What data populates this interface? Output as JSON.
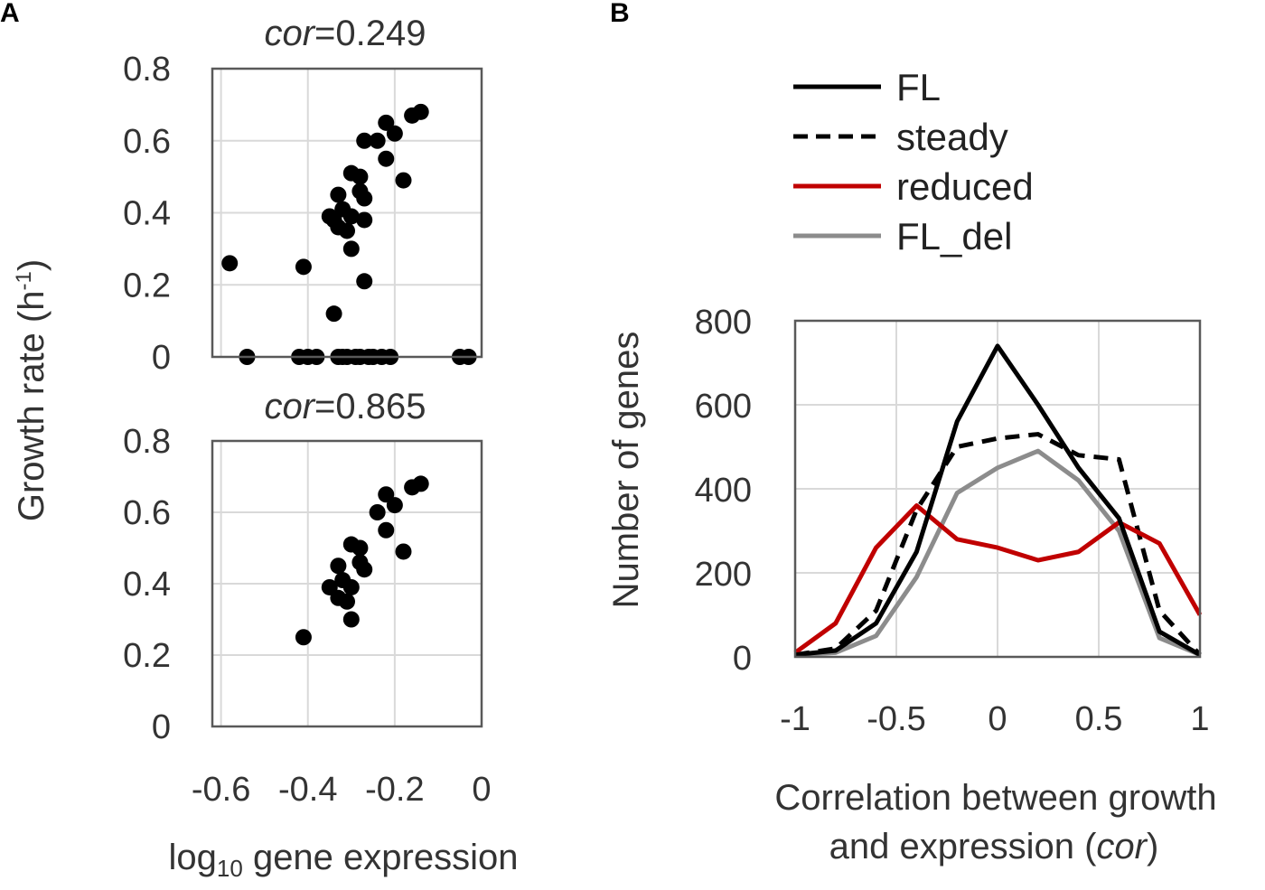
{
  "panels": {
    "a_letter": "A",
    "b_letter": "B"
  },
  "chart_data": [
    {
      "id": "a_top",
      "type": "scatter",
      "title_prefix": "cor",
      "title_value": "=0.249",
      "ylabel": "Growth rate (h",
      "ylabel_sup": "-1",
      "ylabel_close": ")",
      "xlim": [
        -0.62,
        0.0
      ],
      "ylim": [
        0,
        0.8
      ],
      "yticks": [
        "0",
        "0.2",
        "0.4",
        "0.6",
        "0.8"
      ],
      "grid": true,
      "points": [
        [
          -0.58,
          0.26
        ],
        [
          -0.54,
          0.0
        ],
        [
          -0.42,
          0.0
        ],
        [
          -0.41,
          0.25
        ],
        [
          -0.4,
          0.0
        ],
        [
          -0.38,
          0.0
        ],
        [
          -0.35,
          0.39
        ],
        [
          -0.34,
          0.12
        ],
        [
          -0.34,
          0.38
        ],
        [
          -0.33,
          0.36
        ],
        [
          -0.33,
          0.45
        ],
        [
          -0.33,
          0.0
        ],
        [
          -0.32,
          0.41
        ],
        [
          -0.32,
          0.0
        ],
        [
          -0.31,
          0.35
        ],
        [
          -0.31,
          0.0
        ],
        [
          -0.3,
          0.3
        ],
        [
          -0.3,
          0.51
        ],
        [
          -0.3,
          0.39
        ],
        [
          -0.29,
          0.0
        ],
        [
          -0.28,
          0.5
        ],
        [
          -0.28,
          0.46
        ],
        [
          -0.28,
          0.0
        ],
        [
          -0.27,
          0.38
        ],
        [
          -0.27,
          0.6
        ],
        [
          -0.27,
          0.44
        ],
        [
          -0.27,
          0.21
        ],
        [
          -0.26,
          0.0
        ],
        [
          -0.25,
          0.0
        ],
        [
          -0.24,
          0.6
        ],
        [
          -0.23,
          0.0
        ],
        [
          -0.22,
          0.65
        ],
        [
          -0.22,
          0.55
        ],
        [
          -0.21,
          0.0
        ],
        [
          -0.2,
          0.62
        ],
        [
          -0.18,
          0.49
        ],
        [
          -0.16,
          0.67
        ],
        [
          -0.14,
          0.68
        ],
        [
          -0.05,
          0.0
        ],
        [
          -0.03,
          0.0
        ]
      ]
    },
    {
      "id": "a_bottom",
      "type": "scatter",
      "title_prefix": "cor",
      "title_value": "=0.865",
      "xlabel_main": "log",
      "xlabel_sub": "10",
      "xlabel_rest": " gene expression",
      "xlim": [
        -0.62,
        0.0
      ],
      "ylim": [
        0,
        0.8
      ],
      "xticks": [
        "-0.6",
        "-0.4",
        "-0.2",
        "0"
      ],
      "yticks": [
        "0",
        "0.2",
        "0.4",
        "0.6",
        "0.8"
      ],
      "grid": true,
      "points": [
        [
          -0.41,
          0.25
        ],
        [
          -0.35,
          0.39
        ],
        [
          -0.33,
          0.36
        ],
        [
          -0.33,
          0.45
        ],
        [
          -0.32,
          0.41
        ],
        [
          -0.31,
          0.35
        ],
        [
          -0.3,
          0.3
        ],
        [
          -0.3,
          0.51
        ],
        [
          -0.3,
          0.39
        ],
        [
          -0.28,
          0.5
        ],
        [
          -0.28,
          0.46
        ],
        [
          -0.27,
          0.44
        ],
        [
          -0.24,
          0.6
        ],
        [
          -0.22,
          0.65
        ],
        [
          -0.22,
          0.55
        ],
        [
          -0.2,
          0.62
        ],
        [
          -0.18,
          0.49
        ],
        [
          -0.16,
          0.67
        ],
        [
          -0.14,
          0.68
        ]
      ]
    },
    {
      "id": "b",
      "type": "line",
      "xlabel_line1": "Correlation between growth",
      "xlabel_line2_prefix": "and expression (",
      "xlabel_line2_italic": "cor",
      "xlabel_line2_suffix": ")",
      "ylabel": "Number of genes",
      "xlim": [
        -1,
        1
      ],
      "ylim": [
        0,
        800
      ],
      "xticks": [
        "-1",
        "-0.5",
        "0",
        "0.5",
        "1"
      ],
      "yticks": [
        "0",
        "200",
        "400",
        "600",
        "800"
      ],
      "grid": true,
      "x": [
        -1,
        -0.8,
        -0.6,
        -0.4,
        -0.2,
        0,
        0.2,
        0.4,
        0.6,
        0.8,
        1
      ],
      "series": [
        {
          "name": "FL",
          "color": "#000000",
          "dash": "solid",
          "values": [
            5,
            15,
            80,
            250,
            560,
            740,
            600,
            450,
            330,
            60,
            5
          ]
        },
        {
          "name": "steady",
          "color": "#000000",
          "dash": "dashed",
          "values": [
            5,
            20,
            110,
            350,
            500,
            520,
            530,
            480,
            470,
            110,
            5
          ]
        },
        {
          "name": "reduced",
          "color": "#c00000",
          "dash": "solid",
          "values": [
            10,
            80,
            260,
            360,
            280,
            260,
            230,
            250,
            320,
            270,
            100
          ]
        },
        {
          "name": "FL_del",
          "color": "#8c8c8c",
          "dash": "solid",
          "values": [
            5,
            10,
            50,
            190,
            390,
            450,
            490,
            420,
            300,
            45,
            5
          ]
        }
      ]
    }
  ]
}
